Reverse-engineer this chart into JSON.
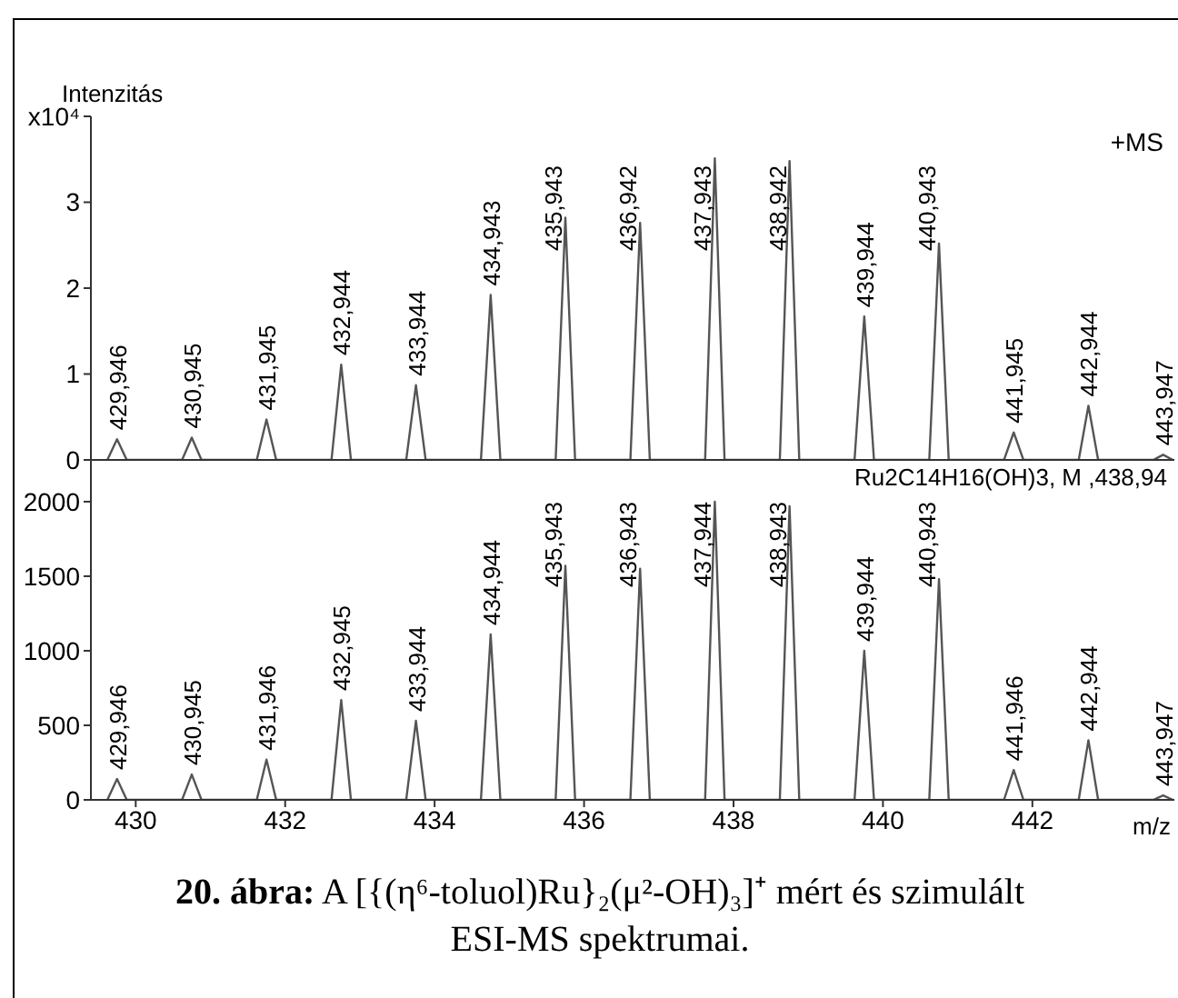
{
  "chart_data": [
    {
      "type": "line",
      "ylabel": "Intenzitás",
      "tick_labels": "y",
      "grid": false,
      "legend": false,
      "marker": "none",
      "line_style": "solid",
      "xlim": [
        429.4,
        443.9
      ],
      "ylim": [
        0,
        4
      ],
      "yticks": [
        0,
        1,
        2,
        3,
        {
          "value": 4,
          "label": "x10⁴"
        }
      ],
      "x": [
        429.62,
        429.75,
        429.88,
        430.62,
        430.75,
        430.88,
        431.62,
        431.75,
        431.88,
        432.62,
        432.75,
        432.88,
        433.62,
        433.75,
        433.88,
        434.62,
        434.75,
        434.88,
        435.62,
        435.75,
        435.88,
        436.62,
        436.75,
        436.88,
        437.62,
        437.75,
        437.88,
        438.62,
        438.75,
        438.88,
        439.62,
        439.75,
        439.88,
        440.62,
        440.75,
        440.88,
        441.62,
        441.75,
        441.88,
        442.62,
        442.75,
        442.88,
        443.62,
        443.75,
        443.88
      ],
      "series": [
        {
          "color": "#555555",
          "values": [
            0,
            0.24,
            0,
            0,
            0.26,
            0,
            0,
            0.47,
            0,
            0,
            1.11,
            0,
            0,
            0.87,
            0,
            0,
            1.92,
            0,
            0,
            2.82,
            0,
            0,
            2.76,
            0,
            0,
            3.51,
            0,
            0,
            3.48,
            0,
            0,
            1.67,
            0,
            0,
            2.52,
            0,
            0,
            0.32,
            0,
            0,
            0.63,
            0,
            0,
            0.06,
            0
          ]
        }
      ],
      "annotations": [
        "+MS",
        {
          "text": "429,946",
          "x": 429.75,
          "y": 0.24
        },
        {
          "text": "430,945",
          "x": 430.75,
          "y": 0.26
        },
        {
          "text": "431,945",
          "x": 431.75,
          "y": 0.47
        },
        {
          "text": "432,944",
          "x": 432.75,
          "y": 1.11
        },
        {
          "text": "433,944",
          "x": 433.75,
          "y": 0.87
        },
        {
          "text": "434,943",
          "x": 434.75,
          "y": 1.92
        },
        {
          "text": "435,943",
          "x": 435.75,
          "y": 2.82
        },
        {
          "text": "436,942",
          "x": 436.75,
          "y": 2.76
        },
        {
          "text": "437,943",
          "x": 437.75,
          "y": 3.51
        },
        {
          "text": "438,942",
          "x": 438.75,
          "y": 3.48
        },
        {
          "text": "439,944",
          "x": 439.75,
          "y": 1.67
        },
        {
          "text": "440,943",
          "x": 440.75,
          "y": 2.52
        },
        {
          "text": "441,945",
          "x": 441.75,
          "y": 0.32
        },
        {
          "text": "442,944",
          "x": 442.75,
          "y": 0.63
        },
        {
          "text": "443,947",
          "x": 443.75,
          "y": 0.06
        }
      ]
    },
    {
      "type": "line",
      "xlabel": "m/z",
      "grid": false,
      "legend": false,
      "marker": "none",
      "line_style": "solid",
      "xlim": [
        429.4,
        443.9
      ],
      "xticks": [
        430,
        432,
        434,
        436,
        438,
        440,
        442
      ],
      "ylim": [
        0,
        2280
      ],
      "yticks": [
        0,
        500,
        1000,
        1500,
        2000
      ],
      "x": [
        429.62,
        429.75,
        429.88,
        430.62,
        430.75,
        430.88,
        431.62,
        431.75,
        431.88,
        432.62,
        432.75,
        432.88,
        433.62,
        433.75,
        433.88,
        434.62,
        434.75,
        434.88,
        435.62,
        435.75,
        435.88,
        436.62,
        436.75,
        436.88,
        437.62,
        437.75,
        437.88,
        438.62,
        438.75,
        438.88,
        439.62,
        439.75,
        439.88,
        440.62,
        440.75,
        440.88,
        441.62,
        441.75,
        441.88,
        442.62,
        442.75,
        442.88,
        443.62,
        443.75,
        443.88
      ],
      "series": [
        {
          "color": "#555555",
          "values": [
            0,
            140,
            0,
            0,
            170,
            0,
            0,
            270,
            0,
            0,
            670,
            0,
            0,
            530,
            0,
            0,
            1110,
            0,
            0,
            1570,
            0,
            0,
            1550,
            0,
            0,
            2000,
            0,
            0,
            1970,
            0,
            0,
            1000,
            0,
            0,
            1480,
            0,
            0,
            200,
            0,
            0,
            400,
            0,
            0,
            30,
            0
          ]
        }
      ],
      "annotations": [
        "Ru2C14H16(OH)3, M ,438,94",
        "20. ábra: A [{(η⁶-toluol)Ru}₂(μ²-OH)₃]⁺ mért és szimulált ESI-MS spektrumai.",
        {
          "text": "429,946",
          "x": 429.75,
          "y": 140
        },
        {
          "text": "430,945",
          "x": 430.75,
          "y": 170
        },
        {
          "text": "431,946",
          "x": 431.75,
          "y": 270
        },
        {
          "text": "432,945",
          "x": 432.75,
          "y": 670
        },
        {
          "text": "433,944",
          "x": 433.75,
          "y": 530
        },
        {
          "text": "434,944",
          "x": 434.75,
          "y": 1110
        },
        {
          "text": "435,943",
          "x": 435.75,
          "y": 1570
        },
        {
          "text": "436,943",
          "x": 436.75,
          "y": 1550
        },
        {
          "text": "437,944",
          "x": 437.75,
          "y": 2000
        },
        {
          "text": "438,943",
          "x": 438.75,
          "y": 1970
        },
        {
          "text": "439,944",
          "x": 439.75,
          "y": 1000
        },
        {
          "text": "440,943",
          "x": 440.75,
          "y": 1480
        },
        {
          "text": "441,946",
          "x": 441.75,
          "y": 200
        },
        {
          "text": "442,944",
          "x": 442.75,
          "y": 400
        },
        {
          "text": "443,947",
          "x": 443.75,
          "y": 30
        }
      ]
    }
  ]
}
